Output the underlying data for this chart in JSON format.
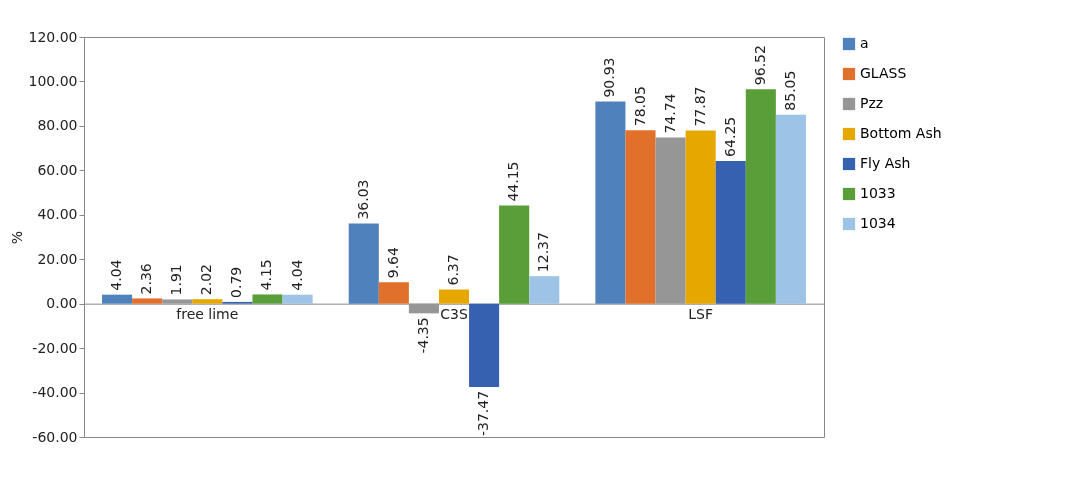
{
  "chart_data": {
    "type": "bar",
    "ylabel": "%",
    "categories": [
      "free lime",
      "C3S",
      "LSF"
    ],
    "series": [
      {
        "name": "a",
        "color": "#4f81bd",
        "values": [
          4.04,
          36.03,
          90.93
        ]
      },
      {
        "name": "GLASS",
        "color": "#e0702a",
        "values": [
          2.36,
          9.64,
          78.05
        ]
      },
      {
        "name": "Pzz",
        "color": "#969696",
        "values": [
          1.91,
          -4.35,
          74.74
        ]
      },
      {
        "name": "Bottom Ash",
        "color": "#e6a800",
        "values": [
          2.02,
          6.37,
          77.87
        ]
      },
      {
        "name": "Fly Ash",
        "color": "#3660b0",
        "values": [
          0.79,
          -37.47,
          64.25
        ]
      },
      {
        "name": "1033",
        "color": "#5a9e3a",
        "values": [
          4.15,
          44.15,
          96.52
        ]
      },
      {
        "name": "1034",
        "color": "#9dc3e6",
        "values": [
          4.04,
          12.37,
          85.05
        ]
      }
    ],
    "ylim": [
      -60,
      120
    ],
    "yticks": [
      {
        "value": -60,
        "label": "-60.00"
      },
      {
        "value": -40,
        "label": "-40.00"
      },
      {
        "value": -20,
        "label": "-20.00"
      },
      {
        "value": 0,
        "label": "0.00"
      },
      {
        "value": 20,
        "label": "20.00"
      },
      {
        "value": 40,
        "label": "40.00"
      },
      {
        "value": 60,
        "label": "60.00"
      },
      {
        "value": 80,
        "label": "80.00"
      },
      {
        "value": 100,
        "label": "100.00"
      },
      {
        "value": 120,
        "label": "120.00"
      }
    ],
    "data_labels": true,
    "grid": false,
    "legend": "right"
  }
}
